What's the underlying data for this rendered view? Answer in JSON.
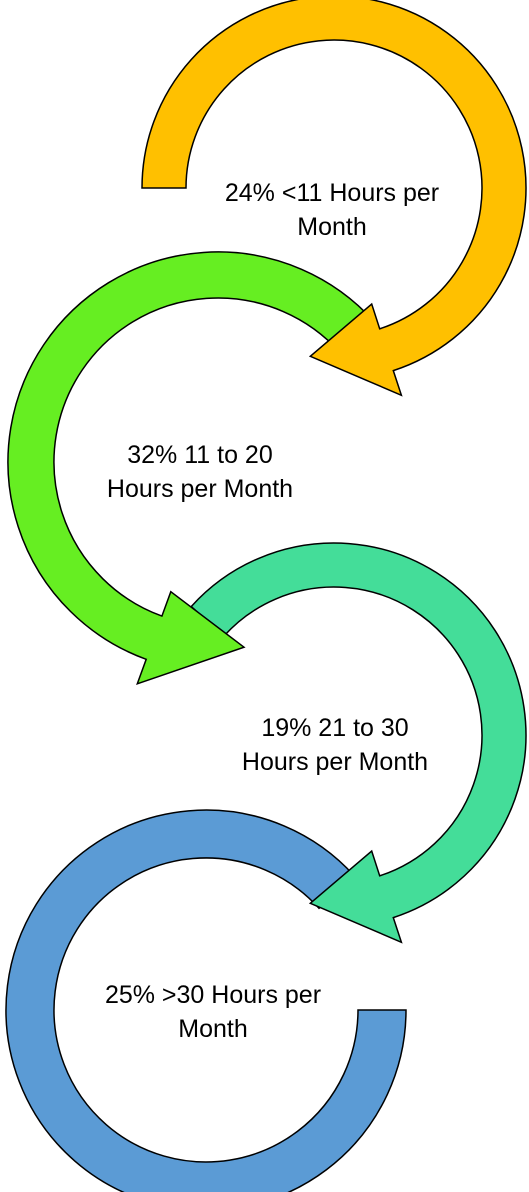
{
  "nodes": [
    {
      "label": "24% <11 Hours per Month"
    },
    {
      "label": "32% 11 to 20 Hours per Month"
    },
    {
      "label": "19% 21 to 30 Hours per Month"
    },
    {
      "label": "25% >30 Hours per Month"
    }
  ]
}
